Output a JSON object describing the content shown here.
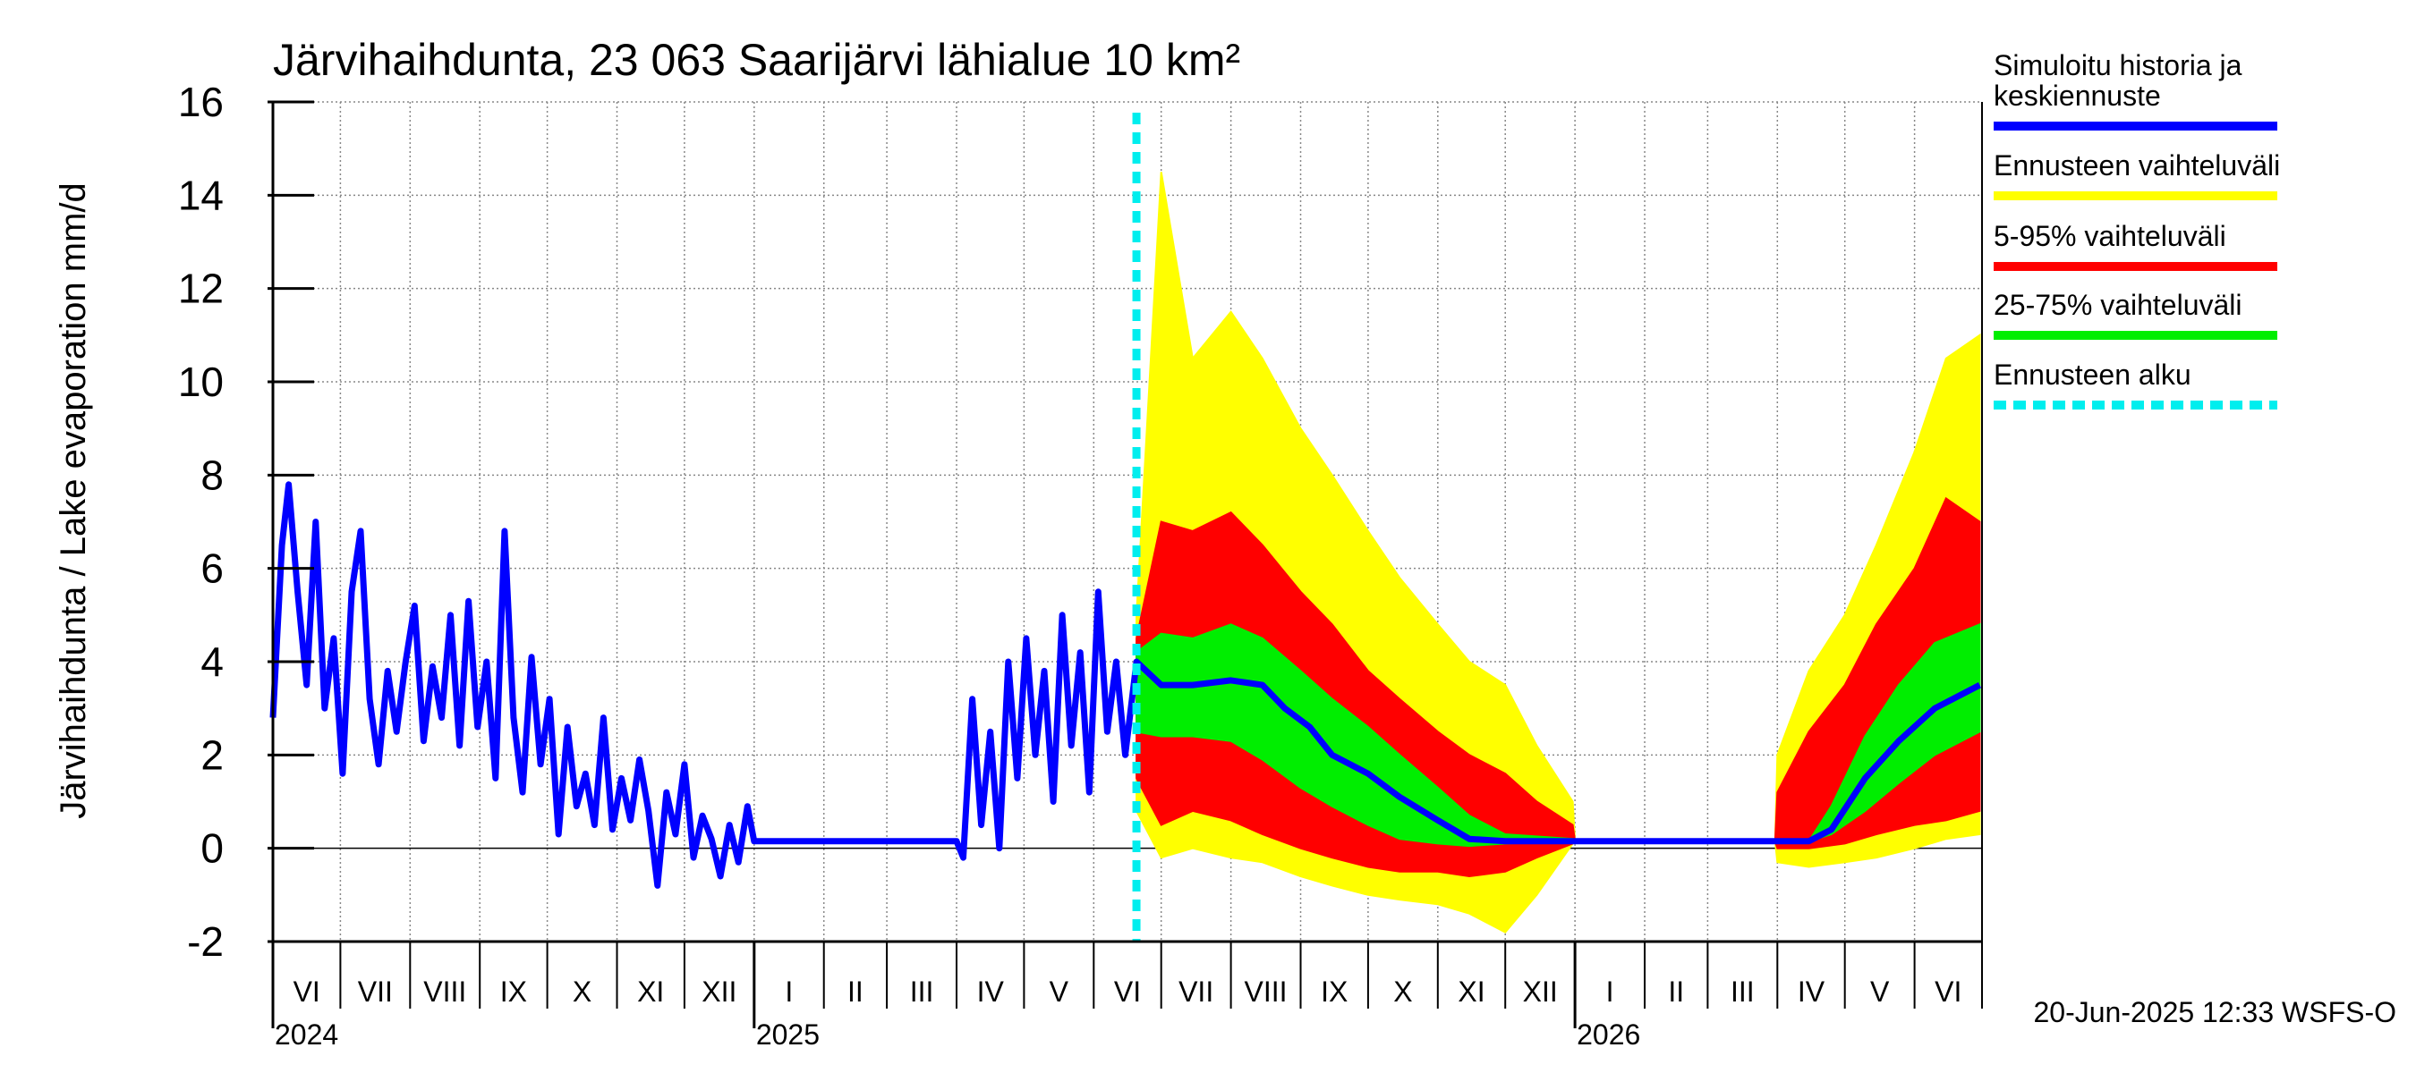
{
  "chart_data": {
    "type": "area",
    "title": "Järvihaihdunta, 23 063 Saarijärvi lähialue 10 km²",
    "ylabel": "Järvihaihdunta / Lake evaporation   mm/d",
    "ylim": [
      -2,
      16
    ],
    "yticks": [
      -2,
      0,
      2,
      4,
      6,
      8,
      10,
      12,
      14,
      16
    ],
    "x_range": [
      "2024-06-01",
      "2026-06-30"
    ],
    "month_labels": [
      "VI",
      "VII",
      "VIII",
      "IX",
      "X",
      "XI",
      "XII",
      "I",
      "II",
      "III",
      "IV",
      "V",
      "VI",
      "VII",
      "VIII",
      "IX",
      "X",
      "XI",
      "XII",
      "I",
      "II",
      "III",
      "IV",
      "V",
      "VI"
    ],
    "year_labels": [
      {
        "label": "2024",
        "date": "2024-06-01"
      },
      {
        "label": "2025",
        "date": "2025-01-01"
      },
      {
        "label": "2026",
        "date": "2026-01-01"
      }
    ],
    "forecast_start": "2025-06-20",
    "grid": true,
    "legend_position": "right",
    "legend": [
      {
        "label": "Simuloitu historia ja keskiennuste",
        "color": "#0000ff",
        "style": "solid"
      },
      {
        "label": "Ennusteen vaihteluväli",
        "color": "#ffff00",
        "style": "solid"
      },
      {
        "label": "5-95% vaihteluväli",
        "color": "#ff0000",
        "style": "solid"
      },
      {
        "label": "25-75% vaihteluväli",
        "color": "#00ee00",
        "style": "solid"
      },
      {
        "label": "Ennusteen alku",
        "color": "#00eeee",
        "style": "dashed"
      }
    ],
    "series": [
      {
        "name": "Simuloitu historia ja keskiennuste",
        "color": "#0000ff",
        "points": [
          [
            "2024-06-01",
            2.8
          ],
          [
            "2024-06-05",
            6.5
          ],
          [
            "2024-06-08",
            7.8
          ],
          [
            "2024-06-12",
            5.5
          ],
          [
            "2024-06-16",
            3.5
          ],
          [
            "2024-06-20",
            7.0
          ],
          [
            "2024-06-24",
            3.0
          ],
          [
            "2024-06-28",
            4.5
          ],
          [
            "2024-07-02",
            1.6
          ],
          [
            "2024-07-06",
            5.5
          ],
          [
            "2024-07-10",
            6.8
          ],
          [
            "2024-07-14",
            3.2
          ],
          [
            "2024-07-18",
            1.8
          ],
          [
            "2024-07-22",
            3.8
          ],
          [
            "2024-07-26",
            2.5
          ],
          [
            "2024-07-30",
            4.0
          ],
          [
            "2024-08-03",
            5.2
          ],
          [
            "2024-08-07",
            2.3
          ],
          [
            "2024-08-11",
            3.9
          ],
          [
            "2024-08-15",
            2.8
          ],
          [
            "2024-08-19",
            5.0
          ],
          [
            "2024-08-23",
            2.2
          ],
          [
            "2024-08-27",
            5.3
          ],
          [
            "2024-08-31",
            2.6
          ],
          [
            "2024-09-04",
            4.0
          ],
          [
            "2024-09-08",
            1.5
          ],
          [
            "2024-09-12",
            6.8
          ],
          [
            "2024-09-16",
            2.8
          ],
          [
            "2024-09-20",
            1.2
          ],
          [
            "2024-09-24",
            4.1
          ],
          [
            "2024-09-28",
            1.8
          ],
          [
            "2024-10-02",
            3.2
          ],
          [
            "2024-10-06",
            0.3
          ],
          [
            "2024-10-10",
            2.6
          ],
          [
            "2024-10-14",
            0.9
          ],
          [
            "2024-10-18",
            1.6
          ],
          [
            "2024-10-22",
            0.5
          ],
          [
            "2024-10-26",
            2.8
          ],
          [
            "2024-10-30",
            0.4
          ],
          [
            "2024-11-03",
            1.5
          ],
          [
            "2024-11-07",
            0.6
          ],
          [
            "2024-11-11",
            1.9
          ],
          [
            "2024-11-15",
            0.8
          ],
          [
            "2024-11-19",
            -0.8
          ],
          [
            "2024-11-23",
            1.2
          ],
          [
            "2024-11-27",
            0.3
          ],
          [
            "2024-12-01",
            1.8
          ],
          [
            "2024-12-05",
            -0.2
          ],
          [
            "2024-12-09",
            0.7
          ],
          [
            "2024-12-13",
            0.2
          ],
          [
            "2024-12-17",
            -0.6
          ],
          [
            "2024-12-21",
            0.5
          ],
          [
            "2024-12-25",
            -0.3
          ],
          [
            "2024-12-29",
            0.9
          ],
          [
            "2025-01-01",
            0.15
          ],
          [
            "2025-04-01",
            0.15
          ],
          [
            "2025-04-04",
            -0.2
          ],
          [
            "2025-04-08",
            3.2
          ],
          [
            "2025-04-12",
            0.5
          ],
          [
            "2025-04-16",
            2.5
          ],
          [
            "2025-04-20",
            0.0
          ],
          [
            "2025-04-24",
            4.0
          ],
          [
            "2025-04-28",
            1.5
          ],
          [
            "2025-05-02",
            4.5
          ],
          [
            "2025-05-06",
            2.0
          ],
          [
            "2025-05-10",
            3.8
          ],
          [
            "2025-05-14",
            1.0
          ],
          [
            "2025-05-18",
            5.0
          ],
          [
            "2025-05-22",
            2.2
          ],
          [
            "2025-05-26",
            4.2
          ],
          [
            "2025-05-30",
            1.2
          ],
          [
            "2025-06-03",
            5.5
          ],
          [
            "2025-06-07",
            2.5
          ],
          [
            "2025-06-11",
            4.0
          ],
          [
            "2025-06-15",
            2.0
          ],
          [
            "2025-06-20",
            4.0
          ],
          [
            "2025-07-01",
            3.5
          ],
          [
            "2025-07-15",
            3.5
          ],
          [
            "2025-08-01",
            3.6
          ],
          [
            "2025-08-15",
            3.5
          ],
          [
            "2025-08-25",
            3.0
          ],
          [
            "2025-09-05",
            2.6
          ],
          [
            "2025-09-15",
            2.0
          ],
          [
            "2025-10-01",
            1.6
          ],
          [
            "2025-10-15",
            1.1
          ],
          [
            "2025-11-01",
            0.6
          ],
          [
            "2025-11-15",
            0.2
          ],
          [
            "2025-12-01",
            0.15
          ],
          [
            "2026-01-01",
            0.15
          ],
          [
            "2026-04-15",
            0.15
          ],
          [
            "2026-04-25",
            0.4
          ],
          [
            "2026-05-10",
            1.5
          ],
          [
            "2026-05-25",
            2.3
          ],
          [
            "2026-06-10",
            3.0
          ],
          [
            "2026-06-30",
            3.5
          ]
        ]
      }
    ],
    "bands": [
      {
        "name": "Ennusteen vaihteluväli",
        "color": "#ffff00",
        "points": [
          [
            "2025-06-20",
            0.8,
            5.0
          ],
          [
            "2025-07-01",
            -0.2,
            14.5
          ],
          [
            "2025-07-15",
            0.0,
            10.5
          ],
          [
            "2025-08-01",
            -0.2,
            11.5
          ],
          [
            "2025-08-15",
            -0.3,
            10.5
          ],
          [
            "2025-09-01",
            -0.6,
            9.0
          ],
          [
            "2025-09-15",
            -0.8,
            8.0
          ],
          [
            "2025-10-01",
            -1.0,
            6.8
          ],
          [
            "2025-10-15",
            -1.1,
            5.8
          ],
          [
            "2025-11-01",
            -1.2,
            4.8
          ],
          [
            "2025-11-15",
            -1.4,
            4.0
          ],
          [
            "2025-12-01",
            -1.8,
            3.5
          ],
          [
            "2025-12-15",
            -1.0,
            2.2
          ],
          [
            "2025-12-31",
            0.1,
            1.0
          ],
          [
            "2026-01-01",
            0.15,
            0.15
          ],
          [
            "2026-03-31",
            0.15,
            0.15
          ],
          [
            "2026-04-01",
            -0.3,
            2.0
          ],
          [
            "2026-04-15",
            -0.4,
            3.8
          ],
          [
            "2026-05-01",
            -0.3,
            5.0
          ],
          [
            "2026-05-15",
            -0.2,
            6.5
          ],
          [
            "2026-06-01",
            0.0,
            8.5
          ],
          [
            "2026-06-15",
            0.2,
            10.5
          ],
          [
            "2026-06-30",
            0.3,
            11.0
          ]
        ]
      },
      {
        "name": "5-95% vaihteluväli",
        "color": "#ff0000",
        "points": [
          [
            "2025-06-20",
            1.5,
            4.5
          ],
          [
            "2025-07-01",
            0.5,
            7.0
          ],
          [
            "2025-07-15",
            0.8,
            6.8
          ],
          [
            "2025-08-01",
            0.6,
            7.2
          ],
          [
            "2025-08-15",
            0.3,
            6.5
          ],
          [
            "2025-09-01",
            0.0,
            5.5
          ],
          [
            "2025-09-15",
            -0.2,
            4.8
          ],
          [
            "2025-10-01",
            -0.4,
            3.8
          ],
          [
            "2025-10-15",
            -0.5,
            3.2
          ],
          [
            "2025-11-01",
            -0.5,
            2.5
          ],
          [
            "2025-11-15",
            -0.6,
            2.0
          ],
          [
            "2025-12-01",
            -0.5,
            1.6
          ],
          [
            "2025-12-15",
            -0.2,
            1.0
          ],
          [
            "2025-12-31",
            0.1,
            0.5
          ],
          [
            "2026-01-01",
            0.15,
            0.15
          ],
          [
            "2026-03-31",
            0.15,
            0.15
          ],
          [
            "2026-04-01",
            0.0,
            1.2
          ],
          [
            "2026-04-15",
            0.0,
            2.5
          ],
          [
            "2026-05-01",
            0.1,
            3.5
          ],
          [
            "2026-05-15",
            0.3,
            4.8
          ],
          [
            "2026-06-01",
            0.5,
            6.0
          ],
          [
            "2026-06-15",
            0.6,
            7.5
          ],
          [
            "2026-06-30",
            0.8,
            7.0
          ]
        ]
      },
      {
        "name": "25-75% vaihteluväli",
        "color": "#00ee00",
        "points": [
          [
            "2025-06-20",
            2.5,
            4.2
          ],
          [
            "2025-07-01",
            2.4,
            4.6
          ],
          [
            "2025-07-15",
            2.4,
            4.5
          ],
          [
            "2025-08-01",
            2.3,
            4.8
          ],
          [
            "2025-08-15",
            1.9,
            4.5
          ],
          [
            "2025-09-01",
            1.3,
            3.8
          ],
          [
            "2025-09-15",
            0.9,
            3.2
          ],
          [
            "2025-10-01",
            0.5,
            2.6
          ],
          [
            "2025-10-15",
            0.2,
            2.0
          ],
          [
            "2025-11-01",
            0.1,
            1.3
          ],
          [
            "2025-11-15",
            0.05,
            0.7
          ],
          [
            "2025-12-01",
            0.1,
            0.3
          ],
          [
            "2025-12-31",
            0.15,
            0.2
          ],
          [
            "2026-01-01",
            0.15,
            0.15
          ],
          [
            "2026-04-15",
            0.15,
            0.15
          ],
          [
            "2026-04-25",
            0.3,
            0.9
          ],
          [
            "2026-05-10",
            0.8,
            2.4
          ],
          [
            "2026-05-25",
            1.4,
            3.5
          ],
          [
            "2026-06-10",
            2.0,
            4.4
          ],
          [
            "2026-06-30",
            2.5,
            4.8
          ]
        ]
      }
    ]
  },
  "footer": {
    "timestamp": "20-Jun-2025 12:33 WSFS-O"
  }
}
